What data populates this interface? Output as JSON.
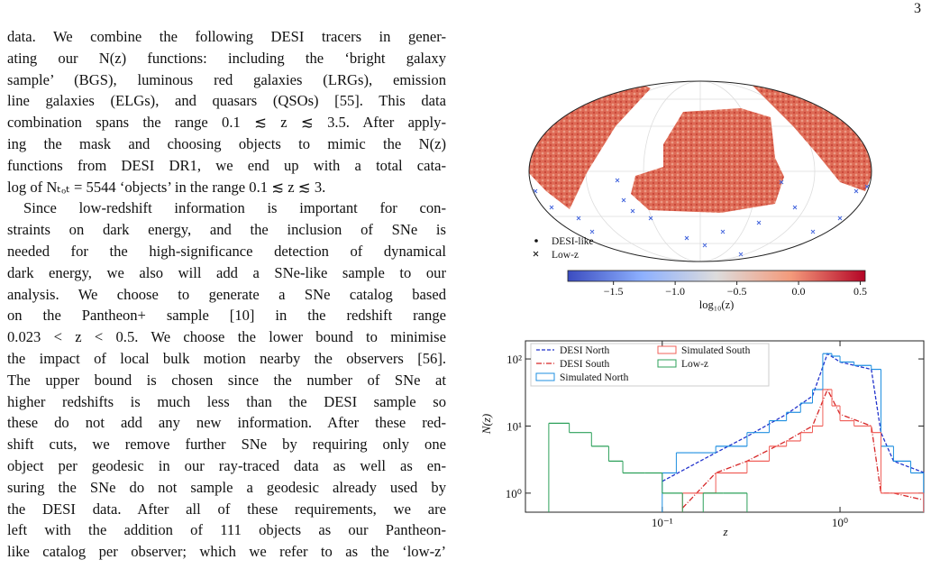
{
  "page_number": "3",
  "paragraphs": [
    {
      "lines": [
        "data. We combine the following DESI tracers in gener-",
        "ating our N(z) functions: including the ‘bright galaxy",
        "sample’ (BGS), luminous red galaxies (LRGs), emission",
        "line galaxies (ELGs), and quasars (QSOs) [55]. This data",
        "combination spans the range 0.1 ≲ z ≲ 3.5. After apply-",
        "ing the mask and choosing objects to mimic the N(z)",
        "functions from DESI DR1, we end up with a total cata-",
        "log of Nₜₒₜ = 5544 ‘objects’ in the range 0.1 ≲ z ≲ 3."
      ]
    },
    {
      "lines": [
        "Since low-redshift information is important for con-",
        "straints on dark energy, and the inclusion of SNe is",
        "needed for the high-significance detection of dynamical",
        "dark energy, we also will add a SNe-like sample to our",
        "analysis. We choose to generate a SNe catalog based",
        "on the Pantheon+ sample [10] in the redshift range",
        "0.023 < z < 0.5. We choose the lower bound to minimise",
        "the impact of local bulk motion nearby the observers [56].",
        "The upper bound is chosen since the number of SNe at",
        "higher redshifts is much less than the DESI sample so",
        "these do not add any new information. After these red-",
        "shift cuts, we remove further SNe by requiring only one",
        "object per geodesic in our ray-traced data as well as en-",
        "suring the SNe do not sample a geodesic already used by",
        "the DESI data. After all of these requirements, we are",
        "left with the addition of 111 objects as our Pantheon-",
        "like catalog per observer; which we refer to as the ‘low-z’"
      ]
    }
  ],
  "sky_map": {
    "legend": [
      "DESI-like",
      "Low-z"
    ],
    "colorbar": {
      "label": "log₁₀(z)",
      "xlim": [
        -1.87,
        0.54
      ],
      "xticks": [
        {
          "value": -1.5,
          "label": "−1.5"
        },
        {
          "value": -1.0,
          "label": "−1.0"
        },
        {
          "value": -0.5,
          "label": "−0.5"
        },
        {
          "value": 0.0,
          "label": "0.0"
        },
        {
          "value": 0.5,
          "label": "0.5"
        }
      ]
    }
  },
  "chart_data": {
    "type": "line",
    "xlabel": "z",
    "ylabel": "N(z)",
    "xscale": "log",
    "yscale": "log",
    "xlim": [
      0.017,
      2.96
    ],
    "ylim": [
      0.52,
      186
    ],
    "xticks": [
      {
        "value": 0.1,
        "label": "10⁻¹"
      },
      {
        "value": 1,
        "label": "10⁰"
      }
    ],
    "yticks": [
      {
        "value": 1,
        "label": "10⁰"
      },
      {
        "value": 10,
        "label": "10¹"
      },
      {
        "value": 100,
        "label": "10²"
      }
    ],
    "series": [
      {
        "name": "DESI North",
        "color": "#2233cc",
        "style": "dashed",
        "x": [
          0.1,
          0.2,
          0.3,
          0.5,
          0.7,
          0.85,
          1.0,
          1.5,
          1.7,
          2.0,
          3.0
        ],
        "values": [
          1.5,
          4,
          7,
          15,
          28,
          120,
          90,
          70,
          8,
          3,
          2
        ]
      },
      {
        "name": "DESI South",
        "color": "#d62728",
        "style": "dashdot",
        "x": [
          0.13,
          0.2,
          0.3,
          0.5,
          0.7,
          0.85,
          1.0,
          1.5,
          1.7,
          2.0,
          2.9
        ],
        "values": [
          0.6,
          2,
          3,
          6,
          10,
          35,
          15,
          10,
          1,
          1,
          0.8
        ]
      },
      {
        "name": "Simulated North",
        "color": "#1f8fe0",
        "style": "step",
        "bins": [
          0.1,
          0.12,
          0.15,
          0.2,
          0.3,
          0.4,
          0.5,
          0.6,
          0.7,
          0.8,
          0.9,
          1.0,
          1.2,
          1.5,
          1.7,
          2.0,
          2.5,
          2.95
        ],
        "values": [
          2,
          4,
          4,
          5,
          8,
          12,
          16,
          22,
          35,
          120,
          110,
          90,
          80,
          70,
          5,
          3,
          2
        ]
      },
      {
        "name": "Simulated South",
        "color": "#f0605a",
        "style": "step",
        "bins": [
          0.13,
          0.15,
          0.2,
          0.3,
          0.4,
          0.5,
          0.6,
          0.7,
          0.8,
          0.9,
          1.0,
          1.2,
          1.5,
          1.7,
          2.0,
          2.5,
          2.95
        ],
        "values": [
          1,
          1,
          2,
          3,
          5,
          6,
          8,
          10,
          35,
          20,
          12,
          10,
          8,
          1,
          1,
          1
        ]
      },
      {
        "name": "Low-z",
        "color": "#2ca05a",
        "style": "step",
        "bins": [
          0.023,
          0.03,
          0.04,
          0.05,
          0.06,
          0.08,
          0.1,
          0.13,
          0.17,
          0.22,
          0.3,
          0.5
        ],
        "values": [
          11,
          8,
          5,
          3,
          2,
          2,
          1,
          null,
          1,
          1,
          null
        ]
      }
    ]
  }
}
